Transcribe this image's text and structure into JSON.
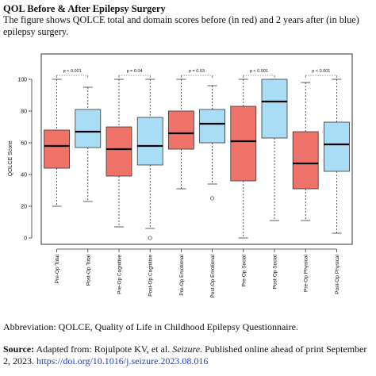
{
  "header": {
    "title": "QOL Before & After Epilepsy Surgery",
    "subtitle": "The figure shows QOLCE total and domain scores before (in red) and 2 years after (in blue) epilepsy surgery."
  },
  "footer": {
    "abbreviation": "Abbreviation: QOLCE, Quality of Life in Childhood Epilepsy Questionnaire.",
    "source_label": "Source:",
    "source_pre": " Adapted from: Rojulpote KV, et al. ",
    "source_journal": "Seizure",
    "source_post": ". Published online ahead of print September 2, 2023. ",
    "source_link": "https://doi.org/10.1016/j.seizure.2023.08.016"
  },
  "colors": {
    "pre_op": "#f0736a",
    "post_op": "#a9dcf5",
    "stroke": "#333333"
  },
  "chart_data": {
    "type": "box",
    "ylabel": "QOLCE Score",
    "xlabel": "",
    "ylim": [
      0,
      100
    ],
    "yticks": [
      0,
      20,
      40,
      60,
      80,
      100
    ],
    "grid": false,
    "categories": [
      "Pre-Op Total",
      "Post-Op Total",
      "Pre-Op Cognitive",
      "Post-Op Cognitive",
      "Pre-Op Emotional",
      "Post-Op Emotional",
      "Pre-Op Social",
      "Post-Op Social",
      "Pre-Op Physical",
      "Post-Op Physical"
    ],
    "groups": [
      "pre",
      "post",
      "pre",
      "post",
      "pre",
      "post",
      "pre",
      "post",
      "pre",
      "post"
    ],
    "boxes": [
      {
        "min": 20,
        "q1": 44,
        "median": 58,
        "q3": 68,
        "max": 100,
        "outliers": []
      },
      {
        "min": 23,
        "q1": 57,
        "median": 67,
        "q3": 81,
        "max": 95,
        "outliers": []
      },
      {
        "min": 7,
        "q1": 39,
        "median": 56,
        "q3": 70,
        "max": 100,
        "outliers": []
      },
      {
        "min": 6,
        "q1": 46,
        "median": 58,
        "q3": 76,
        "max": 100,
        "outliers": [
          0
        ]
      },
      {
        "min": 31,
        "q1": 56,
        "median": 66,
        "q3": 80,
        "max": 100,
        "outliers": []
      },
      {
        "min": 34,
        "q1": 60,
        "median": 72,
        "q3": 81,
        "max": 96,
        "outliers": [
          25
        ]
      },
      {
        "min": 0,
        "q1": 36,
        "median": 61,
        "q3": 83,
        "max": 100,
        "outliers": []
      },
      {
        "min": 11,
        "q1": 63,
        "median": 86,
        "q3": 100,
        "max": 100,
        "outliers": []
      },
      {
        "min": 11,
        "q1": 31,
        "median": 47,
        "q3": 67,
        "max": 98,
        "outliers": []
      },
      {
        "min": 3,
        "q1": 42,
        "median": 59,
        "q3": 73,
        "max": 100,
        "outliers": []
      }
    ],
    "comparisons": [
      {
        "label": "p < 0.001",
        "pair": [
          0,
          1
        ]
      },
      {
        "label": "p = 0.04",
        "pair": [
          2,
          3
        ]
      },
      {
        "label": "p = 0.03",
        "pair": [
          4,
          5
        ]
      },
      {
        "label": "p < 0.001",
        "pair": [
          6,
          7
        ]
      },
      {
        "label": "p < 0.001",
        "pair": [
          8,
          9
        ]
      }
    ]
  }
}
